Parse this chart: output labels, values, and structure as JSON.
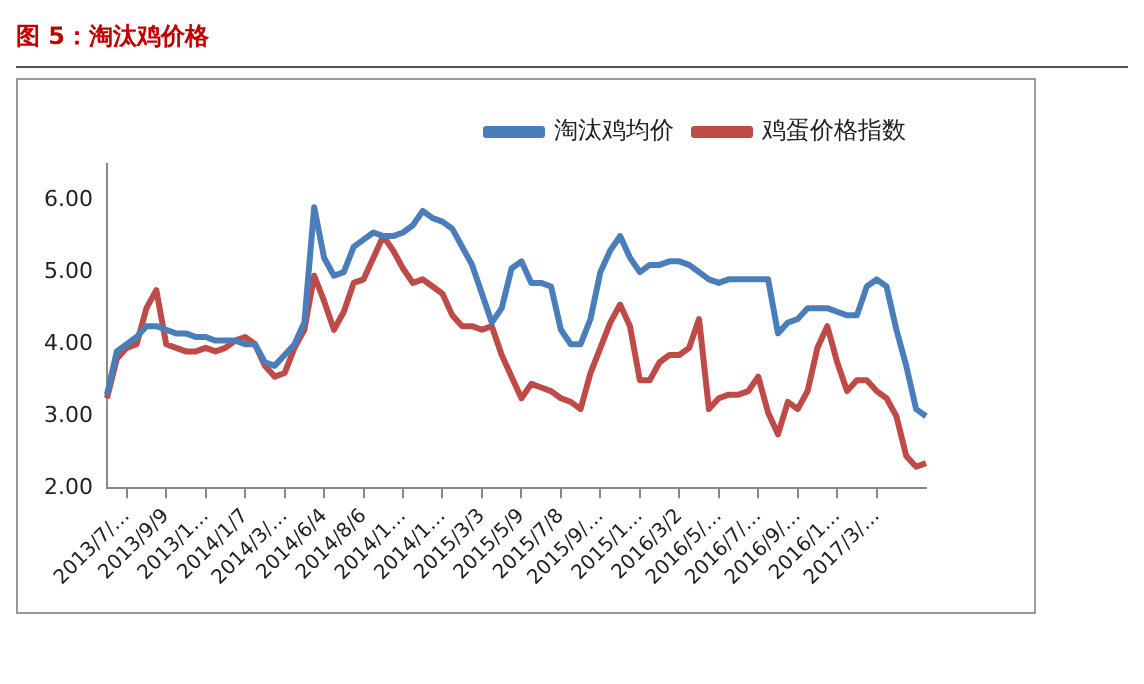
{
  "chart_data": {
    "type": "line",
    "title": "图 5：淘汰鸡价格",
    "categories": [
      null,
      null,
      "2013/7/…",
      null,
      null,
      null,
      "2013/9/9",
      null,
      null,
      null,
      "2013/1…",
      null,
      null,
      null,
      "2014/1/7",
      null,
      null,
      null,
      "2014/3/…",
      null,
      null,
      null,
      "2014/6/4",
      null,
      null,
      null,
      "2014/8/6",
      null,
      null,
      null,
      "2014/1…",
      null,
      null,
      null,
      "2014/1…",
      null,
      null,
      null,
      "2015/3/3",
      null,
      null,
      null,
      "2015/5/9",
      null,
      null,
      null,
      "2015/7/8",
      null,
      null,
      null,
      "2015/9/…",
      null,
      null,
      null,
      "2015/1…",
      null,
      null,
      null,
      "2016/3/2",
      null,
      null,
      null,
      "2016/5/…",
      null,
      null,
      null,
      "2016/7/…",
      null,
      null,
      null,
      "2016/9/…",
      null,
      null,
      null,
      "2016/1…",
      null,
      null,
      null,
      "2017/3/…",
      null,
      null,
      null,
      null,
      null
    ],
    "series": [
      {
        "name": "淘汰鸡均价",
        "color": "#4a7ebb",
        "values": [
          3.3,
          3.9,
          4.0,
          4.1,
          4.25,
          4.25,
          4.2,
          4.15,
          4.15,
          4.1,
          4.1,
          4.05,
          4.05,
          4.05,
          4.0,
          4.0,
          3.75,
          3.7,
          3.85,
          4.0,
          4.3,
          5.9,
          5.2,
          4.95,
          5.0,
          5.35,
          5.45,
          5.55,
          5.5,
          5.5,
          5.55,
          5.65,
          5.85,
          5.75,
          5.7,
          5.6,
          5.35,
          5.1,
          4.7,
          4.3,
          4.5,
          5.05,
          5.15,
          4.85,
          4.85,
          4.8,
          4.2,
          4.0,
          4.0,
          4.35,
          5.0,
          5.3,
          5.5,
          5.2,
          5.0,
          5.1,
          5.1,
          5.15,
          5.15,
          5.1,
          5.0,
          4.9,
          4.85,
          4.9,
          4.9,
          4.9,
          4.9,
          4.9,
          4.15,
          4.3,
          4.35,
          4.5,
          4.5,
          4.5,
          4.45,
          4.4,
          4.4,
          4.8,
          4.9,
          4.8,
          4.2,
          3.7,
          3.1,
          3.0
        ]
      },
      {
        "name": "鸡蛋价格指数",
        "color": "#be4b48",
        "values": [
          3.25,
          3.8,
          3.95,
          4.0,
          4.5,
          4.75,
          4.0,
          3.95,
          3.9,
          3.9,
          3.95,
          3.9,
          3.95,
          4.05,
          4.1,
          4.0,
          3.7,
          3.55,
          3.6,
          3.95,
          4.2,
          4.95,
          4.6,
          4.2,
          4.45,
          4.85,
          4.9,
          5.2,
          5.5,
          5.3,
          5.05,
          4.85,
          4.9,
          4.8,
          4.7,
          4.4,
          4.25,
          4.25,
          4.2,
          4.25,
          3.85,
          3.55,
          3.25,
          3.45,
          3.4,
          3.35,
          3.25,
          3.2,
          3.1,
          3.6,
          3.95,
          4.3,
          4.55,
          4.25,
          3.5,
          3.5,
          3.75,
          3.85,
          3.85,
          3.95,
          4.35,
          3.1,
          3.25,
          3.3,
          3.3,
          3.35,
          3.55,
          3.05,
          2.75,
          3.2,
          3.1,
          3.35,
          3.95,
          4.25,
          3.75,
          3.35,
          3.5,
          3.5,
          3.35,
          3.25,
          3.0,
          2.45,
          2.3,
          2.35
        ]
      }
    ],
    "ylim": [
      2,
      6.5
    ],
    "yticks": [
      {
        "value": 2,
        "label": "2.00"
      },
      {
        "value": 3,
        "label": "3.00"
      },
      {
        "value": 4,
        "label": "4.00"
      },
      {
        "value": 5,
        "label": "5.00"
      },
      {
        "value": 6,
        "label": "6.00"
      }
    ],
    "legend": "top",
    "marker": "none",
    "line_style": "solid"
  }
}
